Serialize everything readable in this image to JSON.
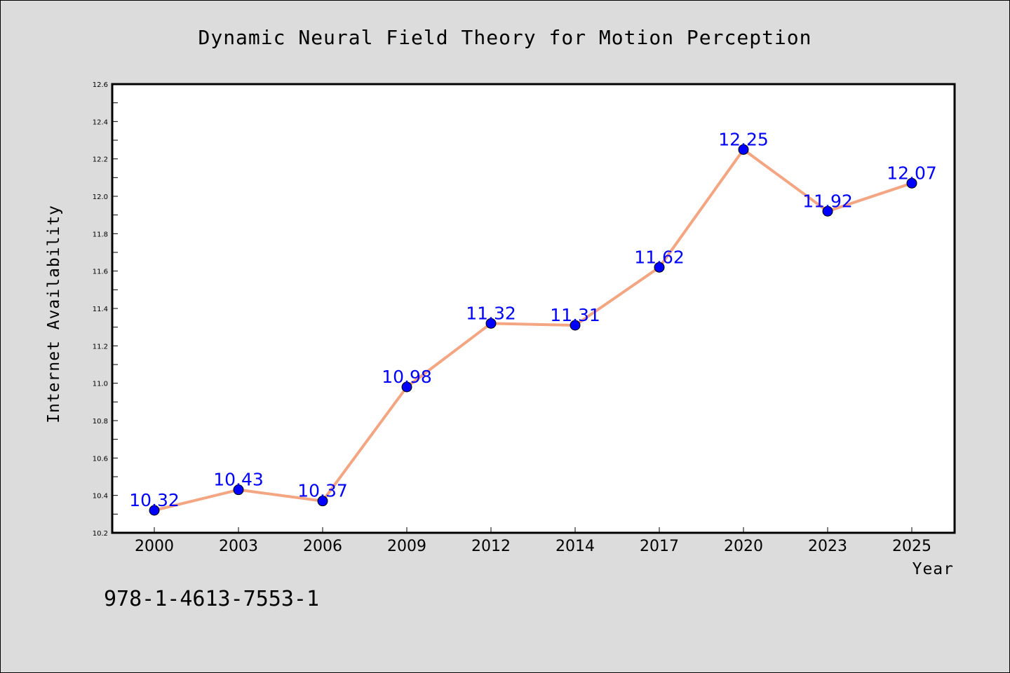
{
  "chart_data": {
    "type": "line",
    "title": "Dynamic Neural Field Theory for Motion Perception",
    "xlabel": "Year",
    "ylabel": "Internet Availability",
    "categories": [
      "2000",
      "2003",
      "2006",
      "2009",
      "2012",
      "2014",
      "2017",
      "2020",
      "2023",
      "2025"
    ],
    "series": [
      {
        "values": [
          10.32,
          10.43,
          10.37,
          10.98,
          11.32,
          11.31,
          11.62,
          12.25,
          11.92,
          12.07
        ],
        "data_labels": [
          "10.32",
          "10.43",
          "10.37",
          "10.98",
          "11.32",
          "11.31",
          "11.62",
          "12.25",
          "11.92",
          "12.07"
        ],
        "line_color": "#f4a582",
        "marker_color": "#0000ff",
        "label_color": "#0000ff"
      }
    ],
    "ylim": [
      10.2,
      12.6
    ],
    "yticks": [
      "10.2",
      "10.4",
      "10.6",
      "10.8",
      "11.0",
      "11.2",
      "11.4",
      "11.6",
      "11.8",
      "12.0",
      "12.2",
      "12.4",
      "12.6"
    ],
    "grid": false,
    "legend": "none"
  },
  "footer_text": "978-1-4613-7553-1",
  "colors": {
    "background": "#dcdcdc",
    "plot_background": "#ffffff"
  }
}
